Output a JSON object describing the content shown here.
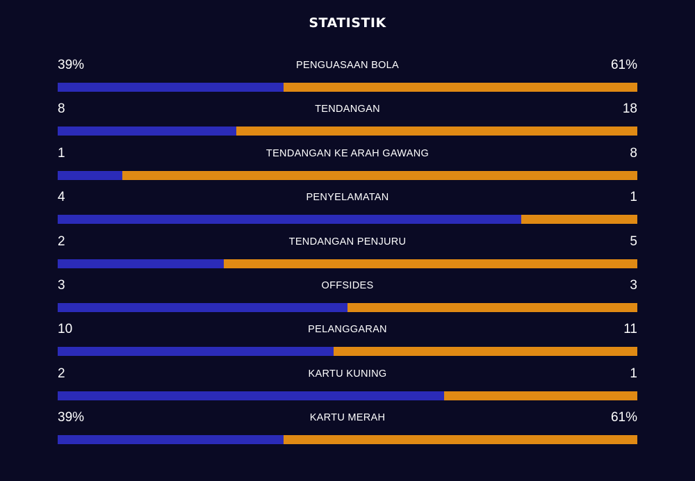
{
  "title": "STATISTIK",
  "colors": {
    "home": "#2b2bb8",
    "away": "#e08a14",
    "background": "#0a0a24"
  },
  "stats": [
    {
      "label": "PENGUASAAN BOLA",
      "home": "39%",
      "away": "61%",
      "home_share": 0.39
    },
    {
      "label": "TENDANGAN",
      "home": "8",
      "away": "18",
      "home_share": 0.308
    },
    {
      "label": "TENDANGAN KE ARAH GAWANG",
      "home": "1",
      "away": "8",
      "home_share": 0.111
    },
    {
      "label": "PENYELAMATAN",
      "home": "4",
      "away": "1",
      "home_share": 0.8
    },
    {
      "label": "TENDANGAN PENJURU",
      "home": "2",
      "away": "5",
      "home_share": 0.286
    },
    {
      "label": "OFFSIDES",
      "home": "3",
      "away": "3",
      "home_share": 0.5
    },
    {
      "label": "PELANGGARAN",
      "home": "10",
      "away": "11",
      "home_share": 0.476
    },
    {
      "label": "KARTU KUNING",
      "home": "2",
      "away": "1",
      "home_share": 0.667
    },
    {
      "label": "KARTU MERAH",
      "home": "39%",
      "away": "61%",
      "home_share": 0.39
    }
  ]
}
